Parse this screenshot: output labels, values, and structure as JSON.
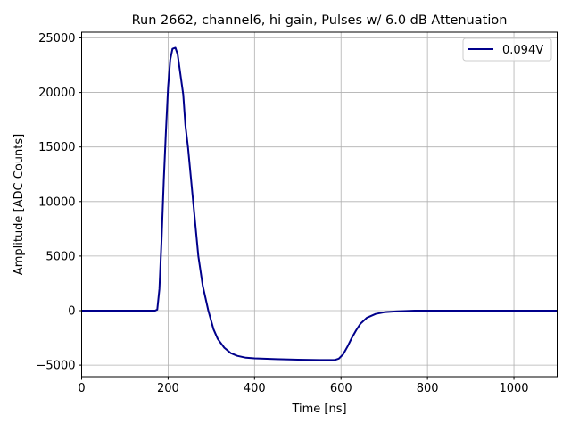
{
  "chart_data": {
    "type": "line",
    "title": "Run 2662, channel6, hi gain, Pulses w/ 6.0 dB Attenuation",
    "xlabel": "Time [ns]",
    "ylabel": "Amplitude [ADC Counts]",
    "xlim": [
      0,
      1100
    ],
    "ylim": [
      -6055,
      25530
    ],
    "xticks": [
      0,
      200,
      400,
      600,
      800,
      1000
    ],
    "xtick_labels": [
      "0",
      "200",
      "400",
      "600",
      "800",
      "1000"
    ],
    "yticks": [
      -5000,
      0,
      5000,
      10000,
      15000,
      20000,
      25000
    ],
    "ytick_labels": [
      "−5000",
      "0",
      "5000",
      "10000",
      "15000",
      "20000",
      "25000"
    ],
    "grid": true,
    "legend_position": "top-right",
    "series": [
      {
        "name": "0.094V",
        "color": "#00008b",
        "x": [
          0,
          100,
          170,
          175,
          180,
          185,
          190,
          195,
          200,
          205,
          210,
          217,
          222,
          228,
          235,
          240,
          246,
          252,
          258,
          264,
          270,
          280,
          293,
          305,
          315,
          330,
          345,
          360,
          380,
          400,
          450,
          500,
          550,
          585,
          595,
          605,
          615,
          625,
          635,
          645,
          660,
          680,
          700,
          730,
          770,
          1100
        ],
        "y": [
          0,
          0,
          0,
          100,
          2000,
          6500,
          12000,
          16500,
          20500,
          23000,
          24000,
          24100,
          23500,
          21800,
          19800,
          17000,
          15000,
          12500,
          10000,
          7500,
          5000,
          2300,
          0,
          -1700,
          -2600,
          -3400,
          -3900,
          -4150,
          -4320,
          -4380,
          -4450,
          -4500,
          -4530,
          -4530,
          -4400,
          -4000,
          -3300,
          -2500,
          -1800,
          -1200,
          -650,
          -300,
          -150,
          -60,
          0,
          0
        ]
      }
    ]
  }
}
